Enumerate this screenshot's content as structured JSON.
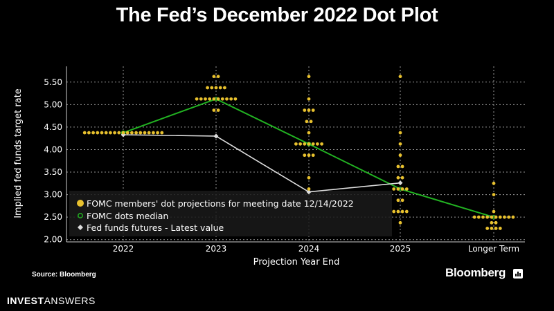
{
  "title": "The Fed’s December 2022 Dot Plot",
  "source_label": "Source: Bloomberg",
  "brand": "Bloomberg",
  "footer_brand": {
    "bold": "INVEST",
    "light": "ANSWERS"
  },
  "colors": {
    "background": "#000000",
    "dots": "#e8c12e",
    "median": "#22b322",
    "futures": "#dddddd",
    "grid": "#9a9a9a",
    "text": "#ffffff"
  },
  "chart_data": {
    "type": "scatter",
    "xlabel": "Projection Year End",
    "ylabel": "Implied fed funds target rate",
    "categories": [
      "2022",
      "2023",
      "2024",
      "2025",
      "Longer Term"
    ],
    "ylim": [
      1.95,
      5.85
    ],
    "yticks": [
      "2.00",
      "2.50",
      "3.00",
      "3.50",
      "4.00",
      "4.50",
      "5.00",
      "5.50"
    ],
    "grid": true,
    "legend_position": "bottom-left",
    "series": [
      {
        "name": "FOMC members' dot projections for meeting date 12/14/2022",
        "marker": "dot",
        "points": [
          {
            "x": "2022",
            "y": 4.375,
            "count": 19
          },
          {
            "x": "2023",
            "y": 5.625,
            "count": 2
          },
          {
            "x": "2023",
            "y": 5.375,
            "count": 5
          },
          {
            "x": "2023",
            "y": 5.125,
            "count": 10
          },
          {
            "x": "2023",
            "y": 4.875,
            "count": 2
          },
          {
            "x": "2024",
            "y": 5.625,
            "count": 1
          },
          {
            "x": "2024",
            "y": 5.125,
            "count": 1
          },
          {
            "x": "2024",
            "y": 4.875,
            "count": 3
          },
          {
            "x": "2024",
            "y": 4.625,
            "count": 2
          },
          {
            "x": "2024",
            "y": 4.375,
            "count": 1
          },
          {
            "x": "2024",
            "y": 4.125,
            "count": 7
          },
          {
            "x": "2024",
            "y": 3.875,
            "count": 3
          },
          {
            "x": "2024",
            "y": 3.375,
            "count": 1
          },
          {
            "x": "2024",
            "y": 3.125,
            "count": 1
          },
          {
            "x": "2025",
            "y": 5.625,
            "count": 1
          },
          {
            "x": "2025",
            "y": 4.375,
            "count": 1
          },
          {
            "x": "2025",
            "y": 4.125,
            "count": 1
          },
          {
            "x": "2025",
            "y": 3.875,
            "count": 1
          },
          {
            "x": "2025",
            "y": 3.625,
            "count": 2
          },
          {
            "x": "2025",
            "y": 3.375,
            "count": 2
          },
          {
            "x": "2025",
            "y": 3.125,
            "count": 4
          },
          {
            "x": "2025",
            "y": 2.875,
            "count": 2
          },
          {
            "x": "2025",
            "y": 2.625,
            "count": 4
          },
          {
            "x": "2025",
            "y": 2.375,
            "count": 1
          },
          {
            "x": "Longer Term",
            "y": 3.25,
            "count": 1
          },
          {
            "x": "Longer Term",
            "y": 3.0,
            "count": 1
          },
          {
            "x": "Longer Term",
            "y": 2.625,
            "count": 1
          },
          {
            "x": "Longer Term",
            "y": 2.5,
            "count": 10
          },
          {
            "x": "Longer Term",
            "y": 2.375,
            "count": 2
          },
          {
            "x": "Longer Term",
            "y": 2.25,
            "count": 4
          }
        ]
      },
      {
        "name": "FOMC dots median",
        "marker": "line",
        "values": [
          4.375,
          5.125,
          4.125,
          3.125,
          2.5
        ]
      },
      {
        "name": "Fed funds futures - Latest value",
        "marker": "diamond-line",
        "values": [
          4.33,
          4.3,
          3.06,
          3.26,
          null
        ]
      }
    ]
  }
}
